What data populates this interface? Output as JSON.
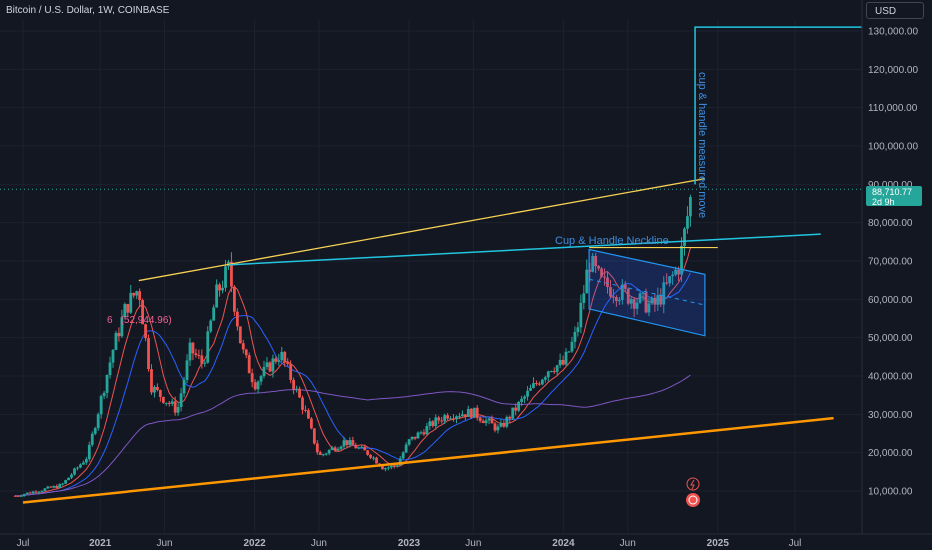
{
  "header": {
    "title": "Bitcoin / U.S. Dollar, 1W, COINBASE"
  },
  "currency_button": "USD",
  "price_badge": {
    "price": "88,710.77",
    "countdown": "2d 9h"
  },
  "colors": {
    "background": "#131722",
    "up": "#26a69a",
    "down": "#ef5350",
    "ma_fast": "#ef5350",
    "ma_mid": "#2962ff",
    "ma_slow": "#7e57c2",
    "yellow_line": "#f7d154",
    "orange_line": "#ff9800",
    "cyan": "#22c5e0",
    "channel": "#2196f3",
    "text": "#b2b5be"
  },
  "annotations": {
    "neckline": "Cup & Handle Neckline",
    "measured_move": "cup & handle measured move",
    "peak_label_prefix": "6",
    "peak_label": "(52,944.96)"
  },
  "chart_data": {
    "type": "candlestick",
    "title": "Bitcoin / U.S. Dollar, 1W, COINBASE",
    "xlabel": "",
    "ylabel": "",
    "x_ticks": [
      "Jul",
      "2021",
      "Jun",
      "2022",
      "Jun",
      "2023",
      "Jun",
      "2024",
      "Jun",
      "2025",
      "Jul"
    ],
    "y_ticks": [
      "10,000.00",
      "20,000.00",
      "30,000.00",
      "40,000.00",
      "50,000.00",
      "60,000.00",
      "70,000.00",
      "80,000.00",
      "90,000.00",
      "100,000.00",
      "110,000.00",
      "120,000.00",
      "130,000.00"
    ],
    "ylim": [
      6000,
      135000
    ],
    "scale": "linear",
    "last_price": 88710.77,
    "price_path": [
      [
        "2020-07",
        9200
      ],
      [
        "2020-10",
        11500
      ],
      [
        "2020-12",
        19000
      ],
      [
        "2021-01",
        33000
      ],
      [
        "2021-02",
        47000
      ],
      [
        "2021-03",
        58000
      ],
      [
        "2021-04",
        63000
      ],
      [
        "2021-05",
        37000
      ],
      [
        "2021-06",
        34000
      ],
      [
        "2021-07",
        31000
      ],
      [
        "2021-08",
        47000
      ],
      [
        "2021-09",
        43000
      ],
      [
        "2021-10",
        61000
      ],
      [
        "2021-11",
        68000
      ],
      [
        "2021-12",
        47000
      ],
      [
        "2022-01",
        38000
      ],
      [
        "2022-03",
        46000
      ],
      [
        "2022-05",
        30000
      ],
      [
        "2022-06",
        19000
      ],
      [
        "2022-08",
        23000
      ],
      [
        "2022-10",
        19500
      ],
      [
        "2022-11",
        16000
      ],
      [
        "2022-12",
        16500
      ],
      [
        "2023-01",
        23000
      ],
      [
        "2023-03",
        28000
      ],
      [
        "2023-04",
        30000
      ],
      [
        "2023-06",
        30500
      ],
      [
        "2023-08",
        26000
      ],
      [
        "2023-10",
        34500
      ],
      [
        "2023-12",
        42500
      ],
      [
        "2024-01",
        43000
      ],
      [
        "2024-02",
        51000
      ],
      [
        "2024-03",
        70000
      ],
      [
        "2024-04",
        64000
      ],
      [
        "2024-06",
        61000
      ],
      [
        "2024-08",
        58000
      ],
      [
        "2024-09",
        63000
      ],
      [
        "2024-10",
        69000
      ],
      [
        "2024-11",
        88710.77
      ]
    ],
    "annotations": [
      {
        "text": "Cup & Handle Neckline",
        "type": "line",
        "from": [
          "2021-11",
          69000
        ],
        "to": [
          "2025-09",
          77000
        ]
      },
      {
        "text": "cup & handle measured move",
        "type": "projection",
        "from": [
          "2024-11",
          90000
        ],
        "to": [
          "2024-11",
          131000
        ]
      }
    ],
    "trendlines": [
      {
        "name": "",
        "color": "#f7d154",
        "from": [
          "2021-04",
          64900
        ],
        "to": [
          "2024-12",
          91500
        ]
      },
      {
        "name": "",
        "color": "#ff9800",
        "from": [
          "2020-07",
          7000
        ],
        "to": [
          "2025-10",
          29000
        ]
      },
      {
        "name": "",
        "color": "#f7d154",
        "from": [
          "2024-03",
          73500
        ],
        "to": [
          "2025-01",
          73500
        ]
      }
    ],
    "channel": {
      "upper": [
        [
          "2024-03",
          73000
        ],
        [
          "2024-12",
          66500
        ]
      ],
      "lower": [
        [
          "2024-03",
          57500
        ],
        [
          "2024-12",
          50500
        ]
      ]
    },
    "grid": true,
    "legend": "none"
  }
}
